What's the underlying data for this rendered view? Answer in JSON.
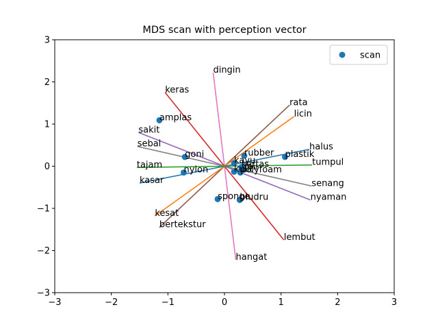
{
  "chart_data": {
    "type": "scatter",
    "title": "MDS scan with perception vector",
    "xlabel": "",
    "ylabel": "",
    "xlim": [
      -3,
      3
    ],
    "ylim": [
      -3,
      3
    ],
    "xticks": [
      -3,
      -2,
      -1,
      0,
      1,
      2,
      3
    ],
    "yticks": [
      -3,
      -2,
      -1,
      0,
      1,
      2,
      3
    ],
    "xtick_labels": [
      "−3",
      "−2",
      "−1",
      "0",
      "1",
      "2",
      "3"
    ],
    "ytick_labels": [
      "−3",
      "−2",
      "−1",
      "0",
      "1",
      "2",
      "3"
    ],
    "grid": false,
    "legend": {
      "placement": "top-right",
      "entries": [
        "scan"
      ]
    },
    "series": [
      {
        "name": "scan",
        "color": "#1f77b4",
        "points": [
          {
            "label": "amplas",
            "x": -1.15,
            "y": 1.09
          },
          {
            "label": "goni",
            "x": -0.7,
            "y": 0.22
          },
          {
            "label": "nylon",
            "x": -0.72,
            "y": -0.15
          },
          {
            "label": "sponge",
            "x": -0.12,
            "y": -0.78
          },
          {
            "label": "bludru",
            "x": 0.27,
            "y": -0.8
          },
          {
            "label": "kayu",
            "x": 0.17,
            "y": 0.07
          },
          {
            "label": "rubber",
            "x": 0.35,
            "y": 0.25
          },
          {
            "label": "plastik",
            "x": 1.07,
            "y": 0.22
          },
          {
            "label": "kertas",
            "x": 0.3,
            "y": -0.02
          },
          {
            "label": "kulit",
            "x": 0.17,
            "y": -0.13
          },
          {
            "label": "polyfoam",
            "x": 0.28,
            "y": -0.15
          },
          {
            "label": "foil",
            "x": 0.35,
            "y": -0.08
          }
        ]
      }
    ],
    "perception_vectors": [
      {
        "label": "dingin",
        "x": -0.2,
        "y": 2.22,
        "color": "#e377c2"
      },
      {
        "label": "hangat",
        "x": 0.2,
        "y": -2.22,
        "color": "#e377c2"
      },
      {
        "label": "keras",
        "x": -1.05,
        "y": 1.75,
        "color": "#d62728"
      },
      {
        "label": "lembut",
        "x": 1.05,
        "y": -1.75,
        "color": "#d62728"
      },
      {
        "label": "rata",
        "x": 1.15,
        "y": 1.45,
        "color": "#8c564b"
      },
      {
        "label": "bertekstur",
        "x": -1.15,
        "y": -1.45,
        "color": "#8c564b"
      },
      {
        "label": "licin",
        "x": 1.23,
        "y": 1.18,
        "color": "#ff7f0e"
      },
      {
        "label": "kesat",
        "x": -1.23,
        "y": -1.18,
        "color": "#ff7f0e"
      },
      {
        "label": "sakit",
        "x": -1.52,
        "y": 0.8,
        "color": "#9467bd"
      },
      {
        "label": "nyaman",
        "x": 1.52,
        "y": -0.8,
        "color": "#9467bd"
      },
      {
        "label": "sebal",
        "x": -1.54,
        "y": 0.47,
        "color": "#7f7f7f"
      },
      {
        "label": "senang",
        "x": 1.54,
        "y": -0.47,
        "color": "#7f7f7f"
      },
      {
        "label": "halus",
        "x": 1.5,
        "y": 0.4,
        "color": "#1f77b4"
      },
      {
        "label": "kasar",
        "x": -1.5,
        "y": -0.4,
        "color": "#1f77b4"
      },
      {
        "label": "tajam",
        "x": -1.55,
        "y": -0.03,
        "color": "#2ca02c"
      },
      {
        "label": "tumpul",
        "x": 1.55,
        "y": 0.03,
        "color": "#2ca02c"
      }
    ]
  }
}
